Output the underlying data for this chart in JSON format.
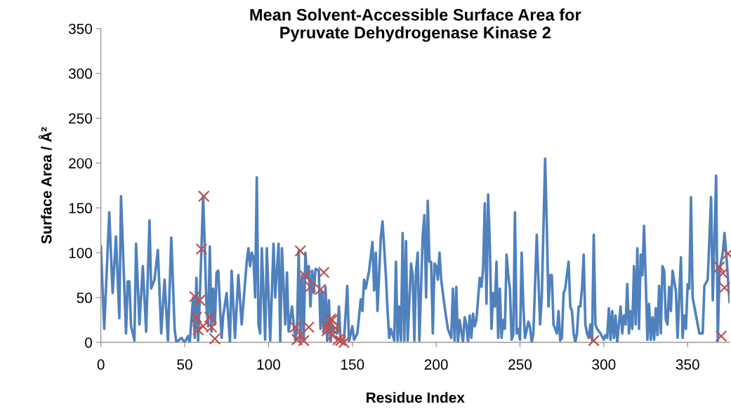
{
  "chart_data": {
    "type": "line",
    "title": "Mean Solvent-Accessible Surface Area for\nPyruvate Dehydrogenase Kinase 2",
    "xlabel": "Residue Index",
    "ylabel": "Surface Area / Å²",
    "xlim": [
      0,
      375
    ],
    "xticks": [
      0,
      50,
      100,
      150,
      200,
      250,
      300,
      350
    ],
    "ylim": [
      0,
      350
    ],
    "yticks": [
      0,
      50,
      100,
      150,
      200,
      250,
      300,
      350
    ],
    "grid": false,
    "legend": false,
    "series": [
      {
        "color": "#4f81bd",
        "marker": "none",
        "line_style": "solid",
        "x": [
          0,
          2,
          5,
          7,
          9,
          11,
          12,
          15,
          16,
          17,
          18,
          20,
          21,
          23,
          25,
          27,
          29,
          30,
          32,
          34,
          36,
          38,
          40,
          42,
          44,
          45,
          48,
          50,
          52,
          53,
          55,
          56,
          57,
          58,
          59,
          60,
          61,
          62,
          63,
          64,
          65,
          66,
          67,
          68,
          69,
          70,
          72,
          73,
          75,
          77,
          78,
          80,
          82,
          84,
          87,
          88,
          89,
          90,
          91,
          92,
          93,
          94,
          95,
          96,
          98,
          99,
          101,
          103,
          104,
          105,
          106,
          107,
          108,
          110,
          111,
          112,
          114,
          116,
          117,
          118,
          119,
          120,
          121,
          122,
          123,
          124,
          125,
          126,
          127,
          128,
          130,
          131,
          132,
          133,
          134,
          135,
          136,
          137,
          138,
          139,
          141,
          142,
          143,
          145,
          147,
          148,
          150,
          151,
          153,
          155,
          156,
          157,
          158,
          160,
          162,
          163,
          164,
          165,
          167,
          168,
          170,
          171,
          172,
          173,
          175,
          176,
          177,
          178,
          179,
          180,
          181,
          182,
          183,
          185,
          186,
          187,
          188,
          189,
          190,
          192,
          193,
          194,
          195,
          196,
          197,
          198,
          199,
          200,
          201,
          202,
          203,
          205,
          207,
          209,
          210,
          211,
          212,
          213,
          214,
          216,
          217,
          218,
          219,
          220,
          221,
          222,
          223,
          224,
          226,
          227,
          228,
          229,
          230,
          231,
          232,
          233,
          234,
          235,
          236,
          237,
          238,
          239,
          240,
          241,
          242,
          243,
          244,
          245,
          246,
          247,
          248,
          249,
          250,
          251,
          252,
          253,
          255,
          256,
          257,
          258,
          260,
          261,
          262,
          263,
          265,
          266,
          267,
          268,
          269,
          270,
          272,
          273,
          274,
          275,
          276,
          277,
          279,
          280,
          281,
          282,
          283,
          284,
          285,
          286,
          287,
          288,
          289,
          290,
          291,
          292,
          293,
          294,
          295,
          296,
          298,
          300,
          301,
          302,
          303,
          304,
          305,
          306,
          307,
          308,
          310,
          311,
          312,
          313,
          314,
          315,
          316,
          317,
          318,
          319,
          320,
          321,
          322,
          323,
          324,
          325,
          326,
          327,
          328,
          329,
          330,
          331,
          332,
          333,
          334,
          335,
          336,
          337,
          338,
          339,
          340,
          341,
          343,
          344,
          346,
          347,
          348,
          349,
          350,
          351,
          352,
          353,
          355,
          357,
          359,
          360,
          362,
          364,
          365,
          367,
          368,
          369,
          371,
          372,
          373,
          375
        ],
        "values": [
          107,
          15,
          145,
          55,
          118,
          27,
          163,
          10,
          68,
          68,
          18,
          2,
          110,
          20,
          85,
          12,
          136,
          60,
          70,
          103,
          10,
          70,
          2,
          117,
          15,
          0,
          5,
          0,
          7,
          0,
          50,
          5,
          72,
          2,
          50,
          105,
          163,
          105,
          40,
          18,
          107,
          12,
          60,
          20,
          78,
          80,
          5,
          30,
          55,
          1,
          80,
          5,
          75,
          20,
          90,
          105,
          85,
          100,
          95,
          50,
          184,
          20,
          10,
          105,
          3,
          105,
          2,
          110,
          50,
          80,
          110,
          1,
          105,
          20,
          78,
          12,
          40,
          2,
          15,
          102,
          0,
          75,
          2,
          100,
          72,
          85,
          40,
          80,
          55,
          82,
          80,
          15,
          57,
          10,
          62,
          2,
          47,
          0,
          20,
          12,
          10,
          40,
          1,
          2,
          63,
          1,
          18,
          3,
          10,
          48,
          35,
          70,
          60,
          80,
          112,
          58,
          100,
          35,
          118,
          135,
          75,
          35,
          5,
          15,
          2,
          90,
          2,
          40,
          2,
          122,
          2,
          113,
          2,
          88,
          75,
          2,
          80,
          100,
          2,
          120,
          142,
          50,
          158,
          90,
          90,
          10,
          88,
          85,
          70,
          100,
          70,
          40,
          15,
          5,
          60,
          2,
          62,
          0,
          25,
          0,
          28,
          20,
          0,
          30,
          5,
          32,
          18,
          25,
          72,
          62,
          82,
          155,
          43,
          165,
          110,
          15,
          55,
          40,
          90,
          5,
          60,
          5,
          25,
          15,
          98,
          75,
          60,
          3,
          8,
          145,
          10,
          15,
          3,
          100,
          40,
          5,
          23,
          17,
          0,
          10,
          120,
          70,
          20,
          50,
          205,
          130,
          40,
          75,
          75,
          20,
          10,
          35,
          2,
          5,
          55,
          60,
          90,
          40,
          35,
          10,
          0,
          10,
          40,
          40,
          60,
          98,
          20,
          10,
          5,
          20,
          2,
          120,
          20,
          15,
          10,
          3,
          8,
          5,
          38,
          3,
          35,
          5,
          30,
          0,
          40,
          10,
          30,
          20,
          65,
          10,
          35,
          15,
          85,
          20,
          105,
          15,
          98,
          75,
          130,
          70,
          3,
          43,
          3,
          28,
          3,
          38,
          8,
          63,
          10,
          85,
          80,
          25,
          20,
          62,
          35,
          80,
          57,
          5,
          95,
          5,
          30,
          15,
          65,
          60,
          162,
          50,
          30,
          10,
          10,
          63,
          70,
          162,
          47,
          186,
          2,
          80,
          100,
          122,
          100,
          45
        ]
      },
      {
        "type": "scatter",
        "color": "#c0504d",
        "marker": "cross",
        "x": [
          56,
          57,
          58,
          59,
          60,
          61.4,
          61,
          65,
          66,
          68,
          116,
          117,
          119,
          119,
          121,
          122,
          124,
          125,
          131,
          133,
          135,
          135,
          137,
          138,
          138,
          140,
          141.5,
          143,
          145,
          294,
          369,
          370,
          371,
          372,
          374
        ],
        "values": [
          51,
          28,
          14,
          47,
          104,
          163,
          18,
          28,
          17,
          4,
          17,
          3,
          8,
          102,
          2,
          74,
          17,
          62,
          59,
          78,
          17,
          13,
          26,
          8,
          25,
          16,
          3,
          2,
          0,
          2,
          84,
          7,
          77,
          61,
          99
        ]
      }
    ]
  }
}
